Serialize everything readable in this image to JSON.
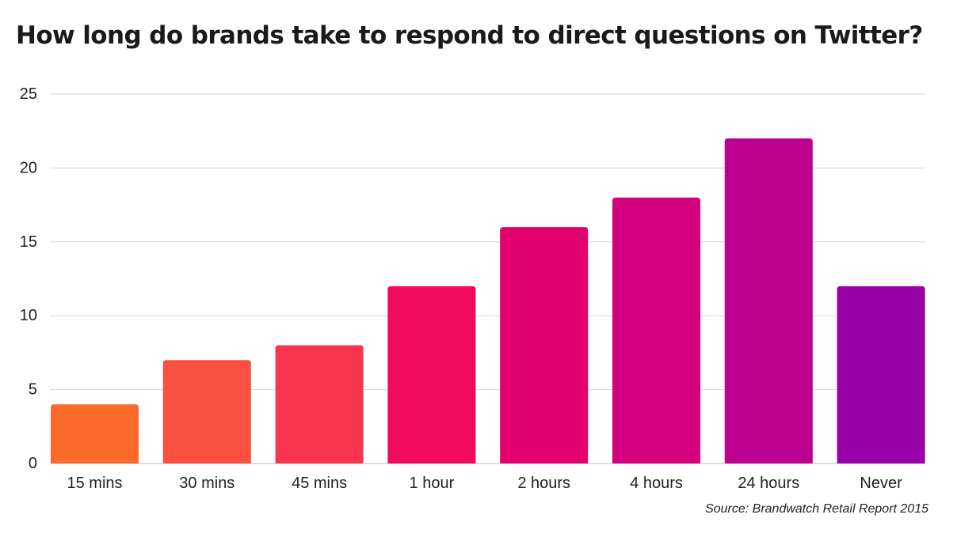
{
  "title": "How long do brands take to respond to direct questions on Twitter?",
  "source": "Source: Brandwatch Retail Report 2015",
  "chart_data": {
    "type": "bar",
    "title": "How long do brands take to respond to direct questions on Twitter?",
    "xlabel": "",
    "ylabel": "",
    "categories": [
      "15 mins",
      "30 mins",
      "45 mins",
      "1 hour",
      "2 hours",
      "4 hours",
      "24 hours",
      "Never"
    ],
    "values": [
      4,
      7,
      8,
      12,
      16,
      18,
      22,
      12
    ],
    "colors": [
      "#fb6a2b",
      "#fb5040",
      "#f8344f",
      "#f20a5c",
      "#e2006e",
      "#d40080",
      "#bc0090",
      "#9800a8"
    ],
    "ylim": [
      0,
      25
    ],
    "yticks": [
      0,
      5,
      10,
      15,
      20,
      25
    ],
    "grid": true,
    "legend": "none",
    "gridline_color": "#d6d6d6",
    "baseline_color": "#bdbdbd"
  }
}
